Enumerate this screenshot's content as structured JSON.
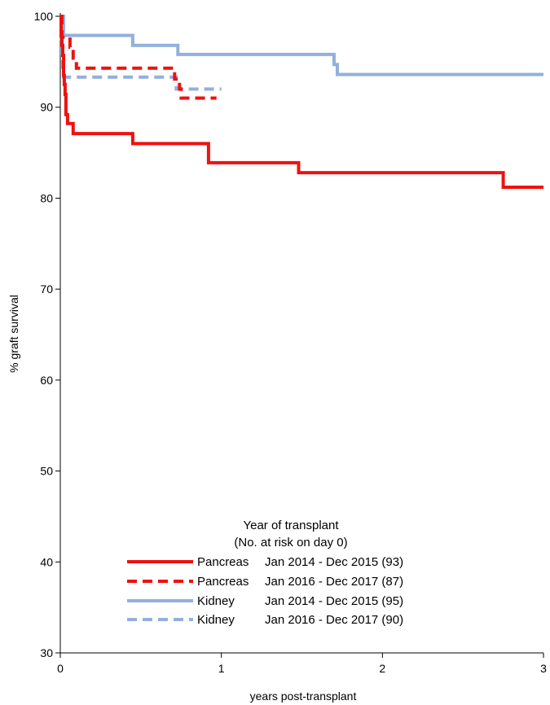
{
  "chart_data": {
    "type": "line",
    "step": true,
    "xlabel": "years post-transplant",
    "ylabel": "% graft survival",
    "xlim": [
      0,
      3
    ],
    "ylim": [
      30,
      100
    ],
    "xticks": [
      0,
      1,
      2,
      3
    ],
    "yticks": [
      30,
      40,
      50,
      60,
      70,
      80,
      90,
      100
    ],
    "grid": false,
    "legend": {
      "placement": "bottom-center",
      "title_line1": "Year of transplant",
      "title_line2": "(No. at risk on day 0)",
      "entries": [
        {
          "organ": "Pancreas",
          "period": "Jan 2014 - Dec 2015 (93)"
        },
        {
          "organ": "Pancreas",
          "period": "Jan 2016 - Dec 2017 (87)"
        },
        {
          "organ": "Kidney",
          "period": "Jan 2014 - Dec 2015 (95)"
        },
        {
          "organ": "Kidney",
          "period": "Jan 2016 - Dec 2017 (90)"
        }
      ]
    },
    "series": [
      {
        "color": "#ee1111",
        "dash": false,
        "points": [
          [
            0,
            100
          ],
          [
            0.005,
            97.8
          ],
          [
            0.01,
            96.8
          ],
          [
            0.015,
            95.7
          ],
          [
            0.02,
            93.5
          ],
          [
            0.025,
            92.5
          ],
          [
            0.03,
            91.4
          ],
          [
            0.035,
            89.2
          ],
          [
            0.045,
            88.2
          ],
          [
            0.06,
            88.2
          ],
          [
            0.08,
            87.1
          ],
          [
            0.45,
            86.0
          ],
          [
            0.92,
            83.9
          ],
          [
            1.48,
            82.8
          ],
          [
            2.75,
            81.2
          ],
          [
            3.0,
            81.2
          ]
        ]
      },
      {
        "color": "#ee1111",
        "dash": true,
        "points": [
          [
            0,
            100
          ],
          [
            0.01,
            97.7
          ],
          [
            0.06,
            96.6
          ],
          [
            0.08,
            95.4
          ],
          [
            0.1,
            94.3
          ],
          [
            0.71,
            93.1
          ],
          [
            0.74,
            92.0
          ],
          [
            0.75,
            91.0
          ],
          [
            0.97,
            91.0
          ]
        ]
      },
      {
        "color": "#92b0dc",
        "dash": false,
        "points": [
          [
            0,
            100
          ],
          [
            0.02,
            97.9
          ],
          [
            0.45,
            96.8
          ],
          [
            0.73,
            95.8
          ],
          [
            1.7,
            94.7
          ],
          [
            1.72,
            93.6
          ],
          [
            3.0,
            93.6
          ]
        ]
      },
      {
        "color": "#92b0dc",
        "dash": true,
        "points": [
          [
            0,
            100
          ],
          [
            0.005,
            96.7
          ],
          [
            0.01,
            95.6
          ],
          [
            0.015,
            94.4
          ],
          [
            0.02,
            93.3
          ],
          [
            0.72,
            92.0
          ],
          [
            1.0,
            92.0
          ]
        ]
      }
    ]
  }
}
